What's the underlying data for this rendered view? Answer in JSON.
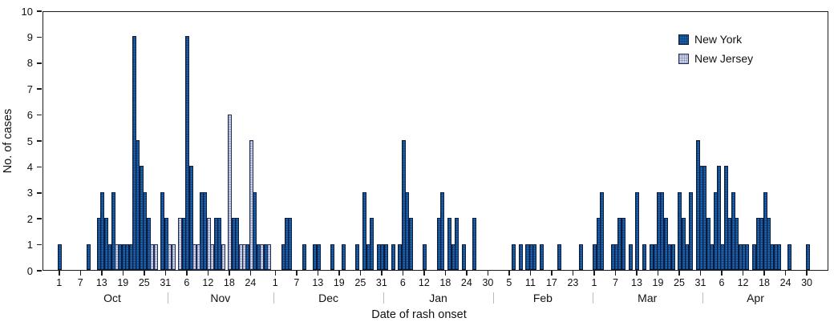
{
  "chart_data": {
    "type": "bar",
    "title": "",
    "xlabel": "Date of rash onset",
    "ylabel": "No. of cases",
    "ylim": [
      0,
      10
    ],
    "yticks": [
      0,
      1,
      2,
      3,
      4,
      5,
      6,
      7,
      8,
      9,
      10
    ],
    "grid": false,
    "legend_position": "top-right",
    "colors": {
      "new_york": "#1a61ab",
      "new_jersey": "#ccd2e8",
      "frame": "#1c1c1c"
    },
    "months": [
      {
        "name": "Oct",
        "days": 31,
        "tick_days": [
          1,
          7,
          13,
          19,
          25,
          31
        ]
      },
      {
        "name": "Nov",
        "days": 30,
        "tick_days": [
          6,
          12,
          18,
          24
        ]
      },
      {
        "name": "Dec",
        "days": 31,
        "tick_days": [
          1,
          7,
          13,
          19,
          25,
          31
        ]
      },
      {
        "name": "Jan",
        "days": 31,
        "tick_days": [
          6,
          12,
          18,
          24,
          30
        ]
      },
      {
        "name": "Feb",
        "days": 28,
        "tick_days": [
          5,
          11,
          17,
          23
        ]
      },
      {
        "name": "Mar",
        "days": 31,
        "tick_days": [
          1,
          7,
          13,
          19,
          25,
          31
        ]
      },
      {
        "name": "Apr",
        "days": 30,
        "tick_days": [
          6,
          12,
          18,
          24,
          30
        ]
      }
    ],
    "series": [
      {
        "name": "New York",
        "key": "ny",
        "points": [
          [
            "Oct",
            1,
            1
          ],
          [
            "Oct",
            9,
            1
          ],
          [
            "Oct",
            12,
            2
          ],
          [
            "Oct",
            13,
            3
          ],
          [
            "Oct",
            14,
            2
          ],
          [
            "Oct",
            15,
            1
          ],
          [
            "Oct",
            16,
            3
          ],
          [
            "Oct",
            18,
            1
          ],
          [
            "Oct",
            19,
            1
          ],
          [
            "Oct",
            20,
            1
          ],
          [
            "Oct",
            21,
            1
          ],
          [
            "Oct",
            22,
            9
          ],
          [
            "Oct",
            23,
            5
          ],
          [
            "Oct",
            24,
            4
          ],
          [
            "Oct",
            25,
            3
          ],
          [
            "Oct",
            26,
            2
          ],
          [
            "Oct",
            30,
            3
          ],
          [
            "Oct",
            31,
            2
          ],
          [
            "Nov",
            5,
            2
          ],
          [
            "Nov",
            6,
            9
          ],
          [
            "Nov",
            7,
            4
          ],
          [
            "Nov",
            10,
            3
          ],
          [
            "Nov",
            11,
            3
          ],
          [
            "Nov",
            14,
            2
          ],
          [
            "Nov",
            15,
            2
          ],
          [
            "Nov",
            19,
            2
          ],
          [
            "Nov",
            20,
            2
          ],
          [
            "Nov",
            23,
            1
          ],
          [
            "Nov",
            25,
            3
          ],
          [
            "Nov",
            26,
            1
          ],
          [
            "Nov",
            28,
            1
          ],
          [
            "Dec",
            3,
            1
          ],
          [
            "Dec",
            4,
            2
          ],
          [
            "Dec",
            5,
            2
          ],
          [
            "Dec",
            9,
            1
          ],
          [
            "Dec",
            12,
            1
          ],
          [
            "Dec",
            13,
            1
          ],
          [
            "Dec",
            17,
            1
          ],
          [
            "Dec",
            20,
            1
          ],
          [
            "Dec",
            24,
            1
          ],
          [
            "Dec",
            26,
            3
          ],
          [
            "Dec",
            27,
            1
          ],
          [
            "Dec",
            28,
            2
          ],
          [
            "Dec",
            30,
            1
          ],
          [
            "Dec",
            31,
            1
          ],
          [
            "Jan",
            1,
            1
          ],
          [
            "Jan",
            3,
            1
          ],
          [
            "Jan",
            5,
            1
          ],
          [
            "Jan",
            6,
            5
          ],
          [
            "Jan",
            7,
            3
          ],
          [
            "Jan",
            8,
            2
          ],
          [
            "Jan",
            12,
            1
          ],
          [
            "Jan",
            16,
            2
          ],
          [
            "Jan",
            17,
            3
          ],
          [
            "Jan",
            19,
            2
          ],
          [
            "Jan",
            20,
            1
          ],
          [
            "Jan",
            21,
            2
          ],
          [
            "Jan",
            23,
            1
          ],
          [
            "Jan",
            26,
            2
          ],
          [
            "Feb",
            6,
            1
          ],
          [
            "Feb",
            8,
            1
          ],
          [
            "Feb",
            10,
            1
          ],
          [
            "Feb",
            11,
            1
          ],
          [
            "Feb",
            12,
            1
          ],
          [
            "Feb",
            14,
            1
          ],
          [
            "Feb",
            19,
            1
          ],
          [
            "Feb",
            25,
            1
          ],
          [
            "Mar",
            1,
            1
          ],
          [
            "Mar",
            2,
            2
          ],
          [
            "Mar",
            3,
            3
          ],
          [
            "Mar",
            6,
            1
          ],
          [
            "Mar",
            7,
            1
          ],
          [
            "Mar",
            8,
            2
          ],
          [
            "Mar",
            9,
            2
          ],
          [
            "Mar",
            11,
            1
          ],
          [
            "Mar",
            13,
            3
          ],
          [
            "Mar",
            15,
            1
          ],
          [
            "Mar",
            17,
            1
          ],
          [
            "Mar",
            18,
            1
          ],
          [
            "Mar",
            19,
            3
          ],
          [
            "Mar",
            20,
            3
          ],
          [
            "Mar",
            21,
            2
          ],
          [
            "Mar",
            22,
            1
          ],
          [
            "Mar",
            23,
            1
          ],
          [
            "Mar",
            25,
            3
          ],
          [
            "Mar",
            26,
            2
          ],
          [
            "Mar",
            27,
            1
          ],
          [
            "Mar",
            28,
            3
          ],
          [
            "Mar",
            30,
            5
          ],
          [
            "Mar",
            31,
            4
          ],
          [
            "Apr",
            1,
            4
          ],
          [
            "Apr",
            2,
            2
          ],
          [
            "Apr",
            3,
            1
          ],
          [
            "Apr",
            4,
            3
          ],
          [
            "Apr",
            5,
            4
          ],
          [
            "Apr",
            6,
            1
          ],
          [
            "Apr",
            7,
            4
          ],
          [
            "Apr",
            8,
            2
          ],
          [
            "Apr",
            9,
            3
          ],
          [
            "Apr",
            10,
            2
          ],
          [
            "Apr",
            11,
            1
          ],
          [
            "Apr",
            12,
            1
          ],
          [
            "Apr",
            13,
            1
          ],
          [
            "Apr",
            15,
            1
          ],
          [
            "Apr",
            16,
            2
          ],
          [
            "Apr",
            17,
            2
          ],
          [
            "Apr",
            18,
            3
          ],
          [
            "Apr",
            19,
            2
          ],
          [
            "Apr",
            20,
            1
          ],
          [
            "Apr",
            21,
            1
          ],
          [
            "Apr",
            22,
            1
          ],
          [
            "Apr",
            25,
            1
          ],
          [
            "Apr",
            30,
            1
          ]
        ]
      },
      {
        "name": "New Jersey",
        "key": "nj",
        "points": [
          [
            "Oct",
            17,
            1
          ],
          [
            "Oct",
            27,
            1
          ],
          [
            "Oct",
            28,
            1
          ],
          [
            "Nov",
            1,
            1
          ],
          [
            "Nov",
            2,
            1
          ],
          [
            "Nov",
            4,
            2
          ],
          [
            "Nov",
            8,
            1
          ],
          [
            "Nov",
            9,
            1
          ],
          [
            "Nov",
            12,
            2
          ],
          [
            "Nov",
            13,
            1
          ],
          [
            "Nov",
            16,
            1
          ],
          [
            "Nov",
            18,
            6
          ],
          [
            "Nov",
            21,
            1
          ],
          [
            "Nov",
            22,
            1
          ],
          [
            "Nov",
            24,
            5
          ],
          [
            "Nov",
            27,
            1
          ],
          [
            "Nov",
            29,
            1
          ]
        ]
      }
    ]
  },
  "legend": {
    "items": [
      {
        "label": "New York",
        "key": "ny"
      },
      {
        "label": "New Jersey",
        "key": "nj"
      }
    ]
  },
  "axes": {
    "y_title": "No. of cases",
    "x_title": "Date of rash onset"
  }
}
